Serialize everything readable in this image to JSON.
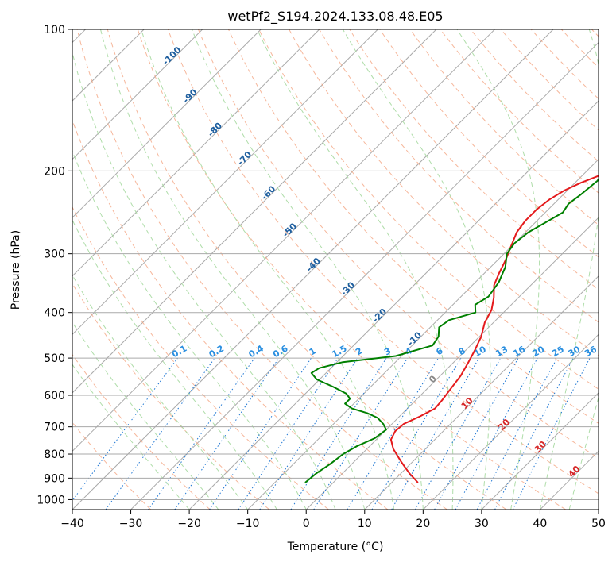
{
  "chart_data": {
    "type": "line",
    "title": "wetPf2_S194.2024.133.08.48.E05",
    "xlabel": "Temperature (°C)",
    "ylabel": "Pressure (hPa)",
    "xlim": [
      -40,
      50
    ],
    "ylim": [
      1050,
      100
    ],
    "y_scale": "log",
    "x_ticks": [
      -40,
      -30,
      -20,
      -10,
      0,
      10,
      20,
      30,
      40,
      50
    ],
    "y_ticks": [
      100,
      200,
      300,
      400,
      500,
      600,
      700,
      800,
      900,
      1000
    ],
    "grid": true,
    "skew_note": "",
    "series": [
      {
        "kind": "temperature",
        "color": "#e41a1c",
        "points": [
          [
            920,
            14.5
          ],
          [
            880,
            11.5
          ],
          [
            830,
            8.0
          ],
          [
            780,
            4.5
          ],
          [
            745,
            2.5
          ],
          [
            715,
            1.8
          ],
          [
            690,
            2.0
          ],
          [
            665,
            3.5
          ],
          [
            640,
            4.7
          ],
          [
            615,
            4.5
          ],
          [
            580,
            4.0
          ],
          [
            545,
            3.5
          ],
          [
            510,
            2.5
          ],
          [
            480,
            1.5
          ],
          [
            450,
            0.3
          ],
          [
            420,
            -1.5
          ],
          [
            395,
            -2.5
          ],
          [
            372,
            -4.2
          ],
          [
            350,
            -6.3
          ],
          [
            330,
            -7.5
          ],
          [
            310,
            -8.6
          ],
          [
            290,
            -10.0
          ],
          [
            270,
            -11.5
          ],
          [
            255,
            -12.0
          ],
          [
            242,
            -12.0
          ],
          [
            230,
            -11.5
          ],
          [
            220,
            -10.5
          ],
          [
            212,
            -9.0
          ],
          [
            205,
            -7.2
          ],
          [
            198,
            -5.2
          ],
          [
            190,
            -3.0
          ],
          [
            180,
            -1.5
          ],
          [
            170,
            -0.5
          ],
          [
            160,
            0.5
          ],
          [
            150,
            1.0
          ],
          [
            140,
            2.0
          ],
          [
            130,
            3.5
          ],
          [
            122,
            4.7
          ],
          [
            115,
            6.5
          ],
          [
            105,
            10.5
          ],
          [
            100,
            13.5
          ]
        ]
      },
      {
        "kind": "dewpoint",
        "color": "#008000",
        "points": [
          [
            920,
            -4.8
          ],
          [
            880,
            -4.5
          ],
          [
            840,
            -3.7
          ],
          [
            800,
            -3.2
          ],
          [
            770,
            -2.2
          ],
          [
            740,
            -0.5
          ],
          [
            710,
            0.0
          ],
          [
            690,
            -1.5
          ],
          [
            670,
            -3.5
          ],
          [
            655,
            -6.0
          ],
          [
            640,
            -9.5
          ],
          [
            625,
            -11.5
          ],
          [
            610,
            -11.5
          ],
          [
            595,
            -13.0
          ],
          [
            575,
            -16.5
          ],
          [
            555,
            -20.5
          ],
          [
            538,
            -22.5
          ],
          [
            525,
            -22.0
          ],
          [
            510,
            -19.0
          ],
          [
            495,
            -11.0
          ],
          [
            470,
            -6.5
          ],
          [
            450,
            -7.0
          ],
          [
            430,
            -8.5
          ],
          [
            415,
            -8.0
          ],
          [
            400,
            -4.8
          ],
          [
            385,
            -6.2
          ],
          [
            370,
            -5.3
          ],
          [
            345,
            -6.0
          ],
          [
            320,
            -7.5
          ],
          [
            300,
            -9.5
          ],
          [
            285,
            -10.0
          ],
          [
            270,
            -9.5
          ],
          [
            255,
            -8.0
          ],
          [
            245,
            -7.0
          ],
          [
            235,
            -7.5
          ],
          [
            225,
            -7.0
          ],
          [
            210,
            -6.5
          ],
          [
            198,
            -7.0
          ],
          [
            190,
            -8.5
          ],
          [
            180,
            -9.0
          ],
          [
            170,
            -9.5
          ],
          [
            160,
            -9.0
          ],
          [
            150,
            -9.5
          ],
          [
            140,
            -11.0
          ],
          [
            130,
            -11.0
          ],
          [
            120,
            -12.5
          ],
          [
            110,
            -15.0
          ],
          [
            100,
            -19.0
          ]
        ]
      }
    ],
    "dry_adiabat_labels": [
      "-100",
      "-90",
      "-80",
      "-70",
      "-60",
      "-50",
      "-40",
      "-30",
      "-20",
      "-10"
    ],
    "mixing_ratio_labels": [
      "0.1",
      "0.2",
      "0.4",
      "0.6",
      "1",
      "1.5",
      "2",
      "3",
      "4",
      "6",
      "8",
      "10",
      "13",
      "16",
      "20",
      "25",
      "30",
      "36"
    ],
    "moist_adiabat_labels": [
      "0",
      "10",
      "20",
      "30",
      "40"
    ],
    "colors": {
      "temperature": "#e41a1c",
      "dewpoint": "#008000",
      "dry_adiabat": "#f4a582",
      "moist_adiabat": "#a6d9a0",
      "mixing_ratio": "#1f77d4",
      "isotherm": "#aaaaaa",
      "dry_label": "#1f5f9f",
      "moist_label": "#d62728",
      "mix_label": "#2a8fe0"
    }
  }
}
